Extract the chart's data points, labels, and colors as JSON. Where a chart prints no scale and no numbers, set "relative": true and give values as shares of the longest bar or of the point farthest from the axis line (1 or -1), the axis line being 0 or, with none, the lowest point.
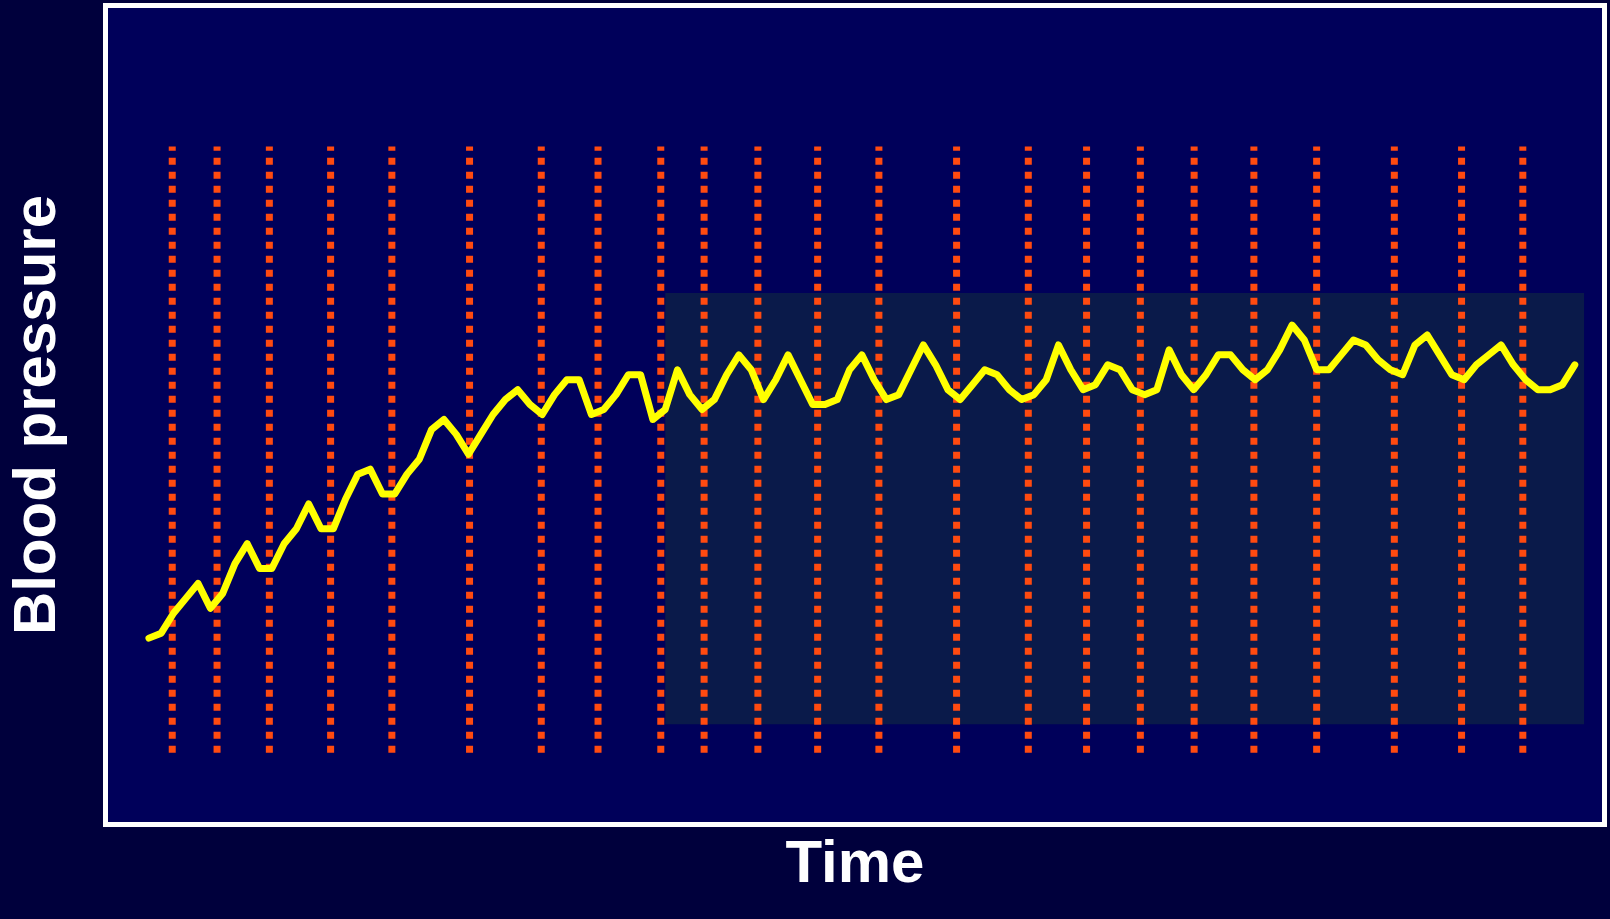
{
  "chart_data": {
    "type": "line",
    "relative": true,
    "xlabel": "Time",
    "ylabel": "Blood pressure",
    "tick_labels": false,
    "marker": "none",
    "line_style": "solid",
    "categories": [
      null,
      null,
      null,
      null,
      null,
      null,
      null,
      null,
      null,
      null,
      null,
      null,
      null,
      null,
      null,
      null,
      null,
      null,
      null,
      null,
      null,
      null,
      null,
      null,
      null,
      null,
      null,
      null,
      null,
      null,
      null,
      null,
      null,
      null,
      null,
      null,
      null,
      null,
      null,
      null,
      null,
      null,
      null,
      null,
      null,
      null,
      null,
      null,
      null,
      null,
      null,
      null,
      null,
      null,
      null,
      null,
      null,
      null,
      null,
      null,
      null,
      null,
      null,
      null,
      null,
      null,
      null,
      null,
      null,
      null,
      null,
      null,
      null,
      null,
      null,
      null,
      null,
      null,
      null,
      null,
      null,
      null,
      null,
      null,
      null,
      null,
      null,
      null,
      null,
      null,
      null,
      null,
      null,
      null,
      null,
      null,
      null,
      null,
      null,
      null,
      null,
      null,
      null,
      null,
      null,
      null,
      null,
      null,
      null,
      null,
      null,
      null,
      null,
      null,
      null,
      null,
      null
    ],
    "series": [
      {
        "color": "#ffff00",
        "values": [
          0.37,
          0.38,
          0.42,
          0.45,
          0.48,
          0.43,
          0.46,
          0.52,
          0.56,
          0.51,
          0.51,
          0.56,
          0.59,
          0.64,
          0.59,
          0.59,
          0.65,
          0.7,
          0.71,
          0.66,
          0.66,
          0.7,
          0.73,
          0.79,
          0.81,
          0.78,
          0.74,
          0.78,
          0.82,
          0.85,
          0.87,
          0.84,
          0.82,
          0.86,
          0.89,
          0.89,
          0.82,
          0.83,
          0.86,
          0.9,
          0.9,
          0.81,
          0.83,
          0.91,
          0.86,
          0.83,
          0.85,
          0.9,
          0.94,
          0.91,
          0.85,
          0.89,
          0.94,
          0.89,
          0.84,
          0.84,
          0.85,
          0.91,
          0.94,
          0.89,
          0.85,
          0.86,
          0.91,
          0.96,
          0.92,
          0.87,
          0.85,
          0.88,
          0.91,
          0.9,
          0.87,
          0.85,
          0.86,
          0.89,
          0.96,
          0.91,
          0.87,
          0.88,
          0.92,
          0.91,
          0.87,
          0.86,
          0.87,
          0.95,
          0.9,
          0.87,
          0.9,
          0.94,
          0.94,
          0.91,
          0.89,
          0.91,
          0.95,
          1.0,
          0.97,
          0.91,
          0.91,
          0.94,
          0.97,
          0.96,
          0.93,
          0.91,
          0.9,
          0.96,
          0.98,
          0.94,
          0.9,
          0.89,
          0.92,
          0.94,
          0.96,
          0.92,
          0.89,
          0.87,
          0.87,
          0.88,
          0.92
        ]
      }
    ]
  }
}
